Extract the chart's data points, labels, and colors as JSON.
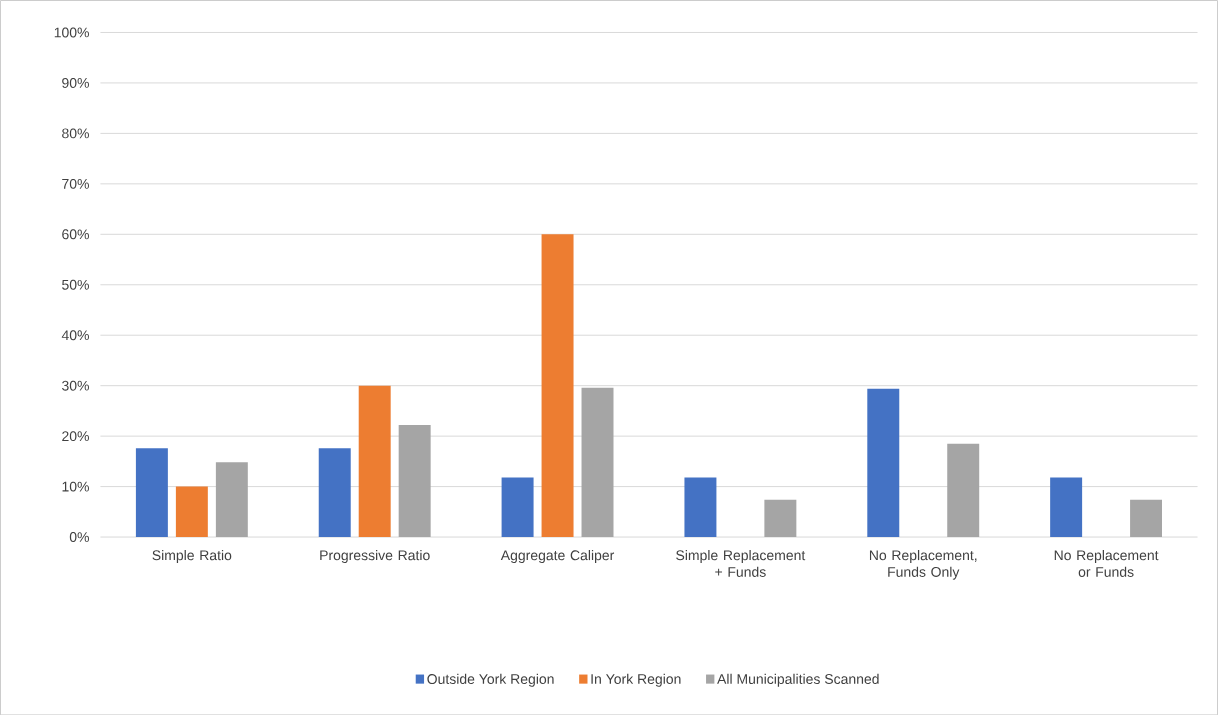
{
  "chart_data": {
    "type": "bar",
    "categories": [
      "Simple Ratio",
      "Progressive Ratio",
      "Aggregate Caliper",
      "Simple Replacement + Funds",
      "No Replacement, Funds Only",
      "No Replacement or Funds"
    ],
    "series": [
      {
        "name": "Outside York Region",
        "color": "#4472c4",
        "values": [
          17.6,
          17.6,
          11.8,
          11.8,
          29.4,
          11.8
        ]
      },
      {
        "name": "In York Region",
        "color": "#ed7d31",
        "values": [
          10,
          30,
          60,
          0,
          0,
          0
        ]
      },
      {
        "name": "All Municipalities Scanned",
        "color": "#a5a5a5",
        "values": [
          14.8,
          22.2,
          29.6,
          7.4,
          18.5,
          7.4
        ]
      }
    ],
    "ylim": [
      0,
      100
    ],
    "yticks": [
      {
        "value": 0,
        "label": "0%"
      },
      {
        "value": 10,
        "label": "10%"
      },
      {
        "value": 20,
        "label": "20%"
      },
      {
        "value": 30,
        "label": "30%"
      },
      {
        "value": 40,
        "label": "40%"
      },
      {
        "value": 50,
        "label": "50%"
      },
      {
        "value": 60,
        "label": "60%"
      },
      {
        "value": 70,
        "label": "70%"
      },
      {
        "value": 80,
        "label": "80%"
      },
      {
        "value": 90,
        "label": "90%"
      },
      {
        "value": 100,
        "label": "100%"
      }
    ],
    "grid": "y",
    "legend": "bottom"
  }
}
